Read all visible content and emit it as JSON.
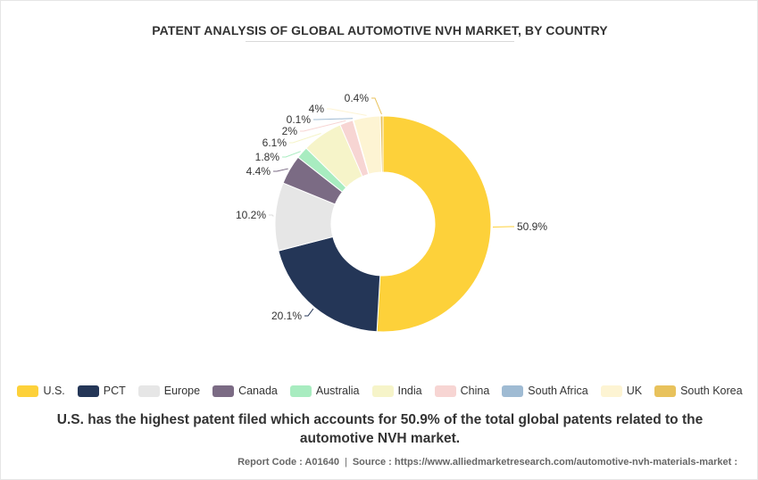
{
  "title": "PATENT ANALYSIS OF GLOBAL AUTOMOTIVE NVH MARKET, BY COUNTRY",
  "caption": "U.S. has the highest patent filed which accounts for 50.9% of the total global patents related to the automotive NVH market.",
  "footer": {
    "report_code": "Report Code : A01640",
    "source": "Source : https://www.alliedmarketresearch.com/automotive-nvh-materials-market :",
    "separator": "|"
  },
  "chart_data": {
    "type": "pie",
    "variant": "donut",
    "categories": [
      "U.S.",
      "PCT",
      "Europe",
      "Canada",
      "Australia",
      "India",
      "China",
      "South Africa",
      "UK",
      "South Korea"
    ],
    "values": [
      50.9,
      20.1,
      10.2,
      4.4,
      1.8,
      6.1,
      2,
      0.1,
      4,
      0.4
    ],
    "data_labels": [
      "50.9%",
      "20.1%",
      "10.2%",
      "4.4%",
      "1.8%",
      "6.1%",
      "2%",
      "0.1%",
      "4%",
      "0.4%"
    ],
    "colors": [
      "#fdd13a",
      "#243657",
      "#e6e6e6",
      "#7b6b84",
      "#a8ecc0",
      "#f6f4c9",
      "#f7d5d3",
      "#9fbbd3",
      "#fdf4d3",
      "#e8c25c"
    ],
    "legend_position": "bottom"
  }
}
